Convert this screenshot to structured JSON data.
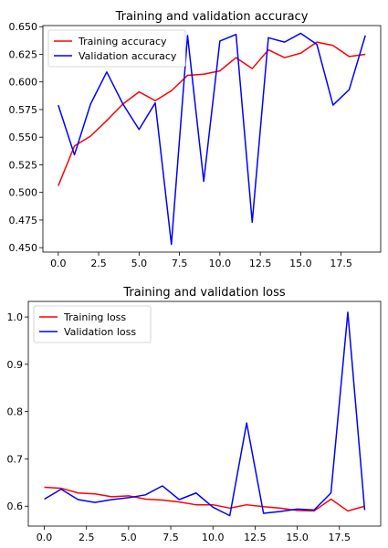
{
  "chart_data": [
    {
      "type": "line",
      "title": "Training and validation accuracy",
      "x": [
        0,
        1,
        2,
        3,
        4,
        5,
        6,
        7,
        8,
        9,
        10,
        11,
        12,
        13,
        14,
        15,
        16,
        17,
        18,
        19
      ],
      "series": [
        {
          "name": "Training accuracy",
          "color": "#ff0000",
          "values": [
            0.506,
            0.542,
            0.551,
            0.565,
            0.58,
            0.591,
            0.583,
            0.592,
            0.606,
            0.607,
            0.61,
            0.622,
            0.612,
            0.629,
            0.622,
            0.626,
            0.636,
            0.633,
            0.623,
            0.625
          ]
        },
        {
          "name": "Validation accuracy",
          "color": "#0000ff",
          "values": [
            0.579,
            0.534,
            0.58,
            0.609,
            0.58,
            0.557,
            0.581,
            0.453,
            0.642,
            0.51,
            0.637,
            0.643,
            0.473,
            0.64,
            0.636,
            0.644,
            0.634,
            0.579,
            0.593,
            0.642
          ]
        }
      ],
      "xlim": [
        -0.95,
        19.95
      ],
      "ylim": [
        0.446,
        0.651
      ],
      "xticks": [
        0.0,
        2.5,
        5.0,
        7.5,
        10.0,
        12.5,
        15.0,
        17.5
      ],
      "xtick_labels": [
        "0.0",
        "2.5",
        "5.0",
        "7.5",
        "10.0",
        "12.5",
        "15.0",
        "17.5"
      ],
      "yticks": [
        0.45,
        0.475,
        0.5,
        0.525,
        0.55,
        0.575,
        0.6,
        0.625,
        0.65
      ],
      "ytick_labels": [
        "0.450",
        "0.475",
        "0.500",
        "0.525",
        "0.550",
        "0.575",
        "0.600",
        "0.625",
        "0.650"
      ],
      "grid": false,
      "legend": "top-left"
    },
    {
      "type": "line",
      "title": "Training and validation loss",
      "x": [
        0,
        1,
        2,
        3,
        4,
        5,
        6,
        7,
        8,
        9,
        10,
        11,
        12,
        13,
        14,
        15,
        16,
        17,
        18,
        19
      ],
      "series": [
        {
          "name": "Training loss",
          "color": "#ff0000",
          "values": [
            0.64,
            0.638,
            0.628,
            0.626,
            0.62,
            0.622,
            0.615,
            0.613,
            0.609,
            0.603,
            0.603,
            0.596,
            0.603,
            0.599,
            0.596,
            0.591,
            0.59,
            0.615,
            0.59,
            0.6
          ]
        },
        {
          "name": "Validation loss",
          "color": "#0000ff",
          "values": [
            0.615,
            0.636,
            0.614,
            0.608,
            0.614,
            0.618,
            0.624,
            0.643,
            0.614,
            0.628,
            0.598,
            0.58,
            0.776,
            0.585,
            0.589,
            0.594,
            0.592,
            0.628,
            1.01,
            0.592
          ]
        }
      ],
      "xlim": [
        -0.95,
        19.95
      ],
      "ylim": [
        0.558,
        1.033
      ],
      "xticks": [
        0.0,
        2.5,
        5.0,
        7.5,
        10.0,
        12.5,
        15.0,
        17.5
      ],
      "xtick_labels": [
        "0.0",
        "2.5",
        "5.0",
        "7.5",
        "10.0",
        "12.5",
        "15.0",
        "17.5"
      ],
      "yticks": [
        0.6,
        0.7,
        0.8,
        0.9,
        1.0
      ],
      "ytick_labels": [
        "0.6",
        "0.7",
        "0.8",
        "0.9",
        "1.0"
      ],
      "grid": false,
      "legend": "top-left"
    }
  ]
}
